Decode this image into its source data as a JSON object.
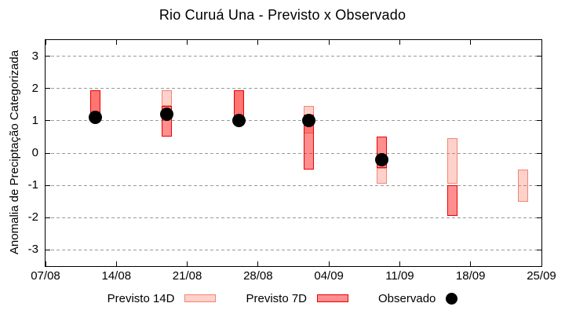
{
  "chart_data": {
    "type": "candlestick",
    "title": "Rio Curuá Una - Previsto x Observado",
    "ylabel": "Anomalia de Preciptação Categorizada",
    "xlabel": "",
    "ylim": [
      -3.5,
      3.5
    ],
    "y_ticks": [
      3,
      2,
      1,
      0,
      -1,
      -2,
      -3
    ],
    "x_tick_labels": [
      "07/08",
      "14/08",
      "21/08",
      "28/08",
      "04/09",
      "11/09",
      "18/09",
      "25/09"
    ],
    "x_tick_days": [
      0,
      7,
      14,
      21,
      28,
      35,
      42,
      49
    ],
    "x_total_days": 49,
    "grid": "horizontal-dashed",
    "grid_color": "#9a9a9a",
    "frame_color": "#000000",
    "legend_position": "below-chart",
    "series_styles": {
      "previsto_14d": {
        "fill": "rgba(255,90,70,0.28)",
        "border": "#f08672"
      },
      "previsto_7d": {
        "fill": "rgba(255,0,0,0.44)",
        "border": "#e60000"
      },
      "observado": {
        "color": "#000000"
      }
    },
    "legend": [
      {
        "label": "Previsto 14D",
        "series": "previsto_14d",
        "swatch": "box"
      },
      {
        "label": "Previsto 7D",
        "series": "previsto_7d",
        "swatch": "box"
      },
      {
        "label": "Observado",
        "series": "observado",
        "swatch": "dot"
      }
    ],
    "points": [
      {
        "date": "12/08",
        "day": 4.95,
        "boxes": [
          {
            "series": "previsto_14d",
            "lo": 1.05,
            "hi": 1.95
          },
          {
            "series": "previsto_7d",
            "lo": 1.05,
            "hi": 1.95
          }
        ],
        "observado": 1.1
      },
      {
        "date": "19/08",
        "day": 12.0,
        "boxes": [
          {
            "series": "previsto_14d",
            "lo": 1.45,
            "hi": 1.95
          },
          {
            "series": "previsto_7d",
            "lo": 0.5,
            "hi": 1.45
          }
        ],
        "observado": 1.2
      },
      {
        "date": "26/08",
        "day": 19.1,
        "boxes": [
          {
            "series": "previsto_14d",
            "lo": 1.0,
            "hi": 1.95
          },
          {
            "series": "previsto_7d",
            "lo": 1.0,
            "hi": 1.95
          }
        ],
        "observado": 1.0
      },
      {
        "date": "02/09",
        "day": 26.0,
        "boxes": [
          {
            "series": "previsto_14d",
            "lo": 0.6,
            "hi": 1.45
          },
          {
            "series": "previsto_7d",
            "lo": -0.5,
            "hi": 1.2
          }
        ],
        "observado": 1.0
      },
      {
        "date": "09/09",
        "day": 33.2,
        "boxes": [
          {
            "series": "previsto_14d",
            "lo": -0.95,
            "hi": -0.45
          },
          {
            "series": "previsto_7d",
            "lo": -0.45,
            "hi": 0.5
          }
        ],
        "observado": -0.2
      },
      {
        "date": "16/09",
        "day": 40.2,
        "boxes": [
          {
            "series": "previsto_14d",
            "lo": -0.95,
            "hi": 0.45
          },
          {
            "series": "previsto_7d",
            "lo": -1.95,
            "hi": -1.0
          }
        ],
        "observado": null
      },
      {
        "date": "23/09",
        "day": 47.2,
        "boxes": [
          {
            "series": "previsto_14d",
            "lo": -1.5,
            "hi": -0.5
          }
        ],
        "observado": null
      }
    ]
  }
}
